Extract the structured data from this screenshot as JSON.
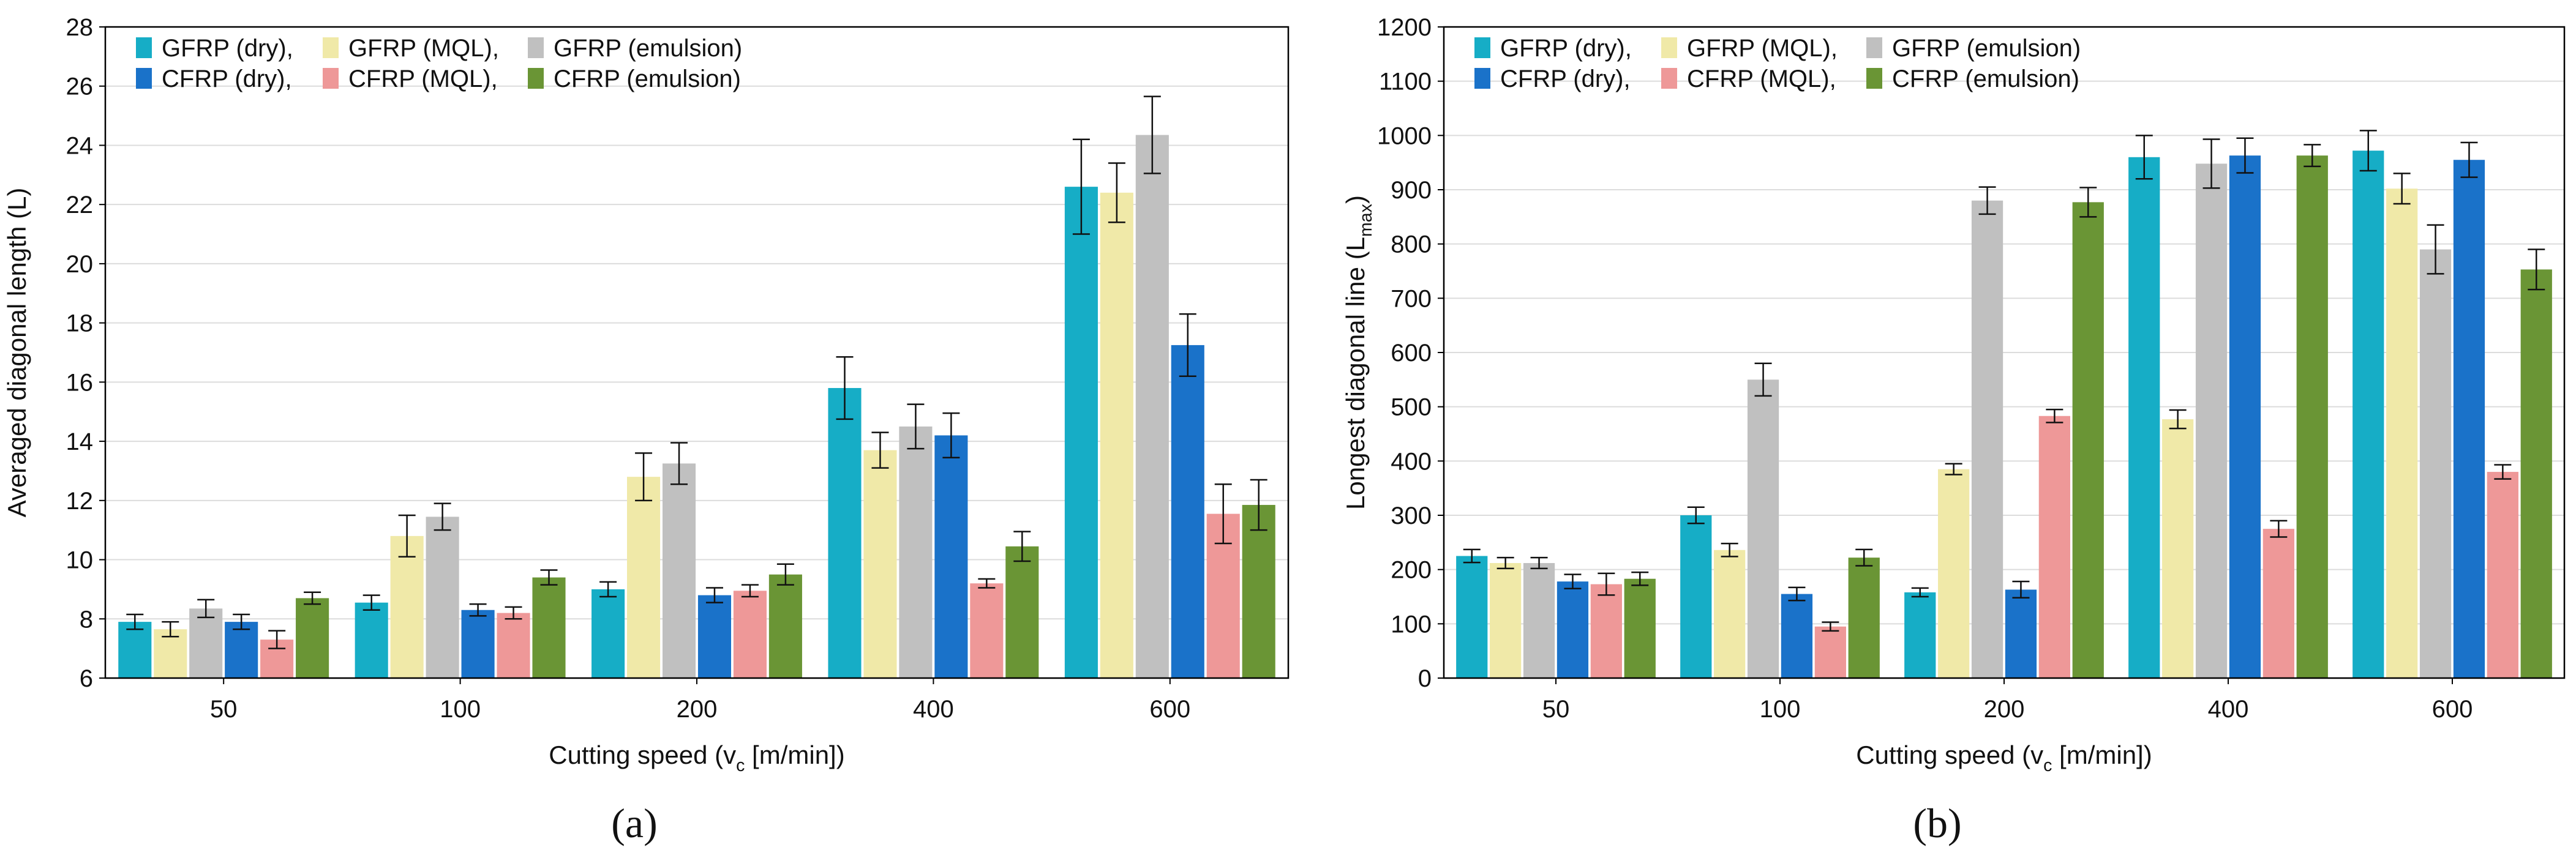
{
  "panel_labels": [
    "(a)",
    "(b)"
  ],
  "legend": {
    "entries": [
      {
        "name": "GFRP (dry),",
        "color": "#16adc6"
      },
      {
        "name": "GFRP (MQL),",
        "color": "#f0e9a8"
      },
      {
        "name": "GFRP (emulsion)",
        "color": "#c0c0c0"
      },
      {
        "name": "CFRP (dry),",
        "color": "#1a72c9"
      },
      {
        "name": "CFRP (MQL),",
        "color": "#ee9898"
      },
      {
        "name": "CFRP (emulsion)",
        "color": "#6a9535"
      }
    ]
  },
  "chart_data": [
    {
      "type": "bar",
      "categories": [
        "50",
        "100",
        "200",
        "400",
        "600"
      ],
      "xlabel_parts": [
        "Cutting speed (v",
        "c",
        " [m/min])"
      ],
      "ylabel_parts": [
        "Averaged diagonal length (L)"
      ],
      "ylim": [
        6,
        28
      ],
      "yticks": [
        6,
        8,
        10,
        12,
        14,
        16,
        18,
        20,
        22,
        24,
        26,
        28
      ],
      "grid": true,
      "legend_position": "top-left",
      "series": [
        {
          "name": "GFRP (dry)",
          "values": [
            7.9,
            8.55,
            9.0,
            15.8,
            22.6
          ],
          "errors": [
            0.25,
            0.25,
            0.25,
            1.05,
            1.6
          ]
        },
        {
          "name": "GFRP (MQL)",
          "values": [
            7.65,
            10.8,
            12.8,
            13.7,
            22.4
          ],
          "errors": [
            0.25,
            0.7,
            0.8,
            0.6,
            1.0
          ]
        },
        {
          "name": "GFRP (emulsion)",
          "values": [
            8.35,
            11.45,
            13.25,
            14.5,
            24.35
          ],
          "errors": [
            0.3,
            0.45,
            0.7,
            0.75,
            1.3
          ]
        },
        {
          "name": "CFRP (dry)",
          "values": [
            7.9,
            8.3,
            8.8,
            14.2,
            17.25
          ],
          "errors": [
            0.25,
            0.2,
            0.25,
            0.75,
            1.05
          ]
        },
        {
          "name": "CFRP (MQL)",
          "values": [
            7.3,
            8.2,
            8.95,
            9.2,
            11.55
          ],
          "errors": [
            0.3,
            0.2,
            0.2,
            0.15,
            1.0
          ]
        },
        {
          "name": "CFRP (emulsion)",
          "values": [
            8.7,
            9.4,
            9.5,
            10.45,
            11.85
          ],
          "errors": [
            0.2,
            0.25,
            0.35,
            0.5,
            0.85
          ]
        }
      ]
    },
    {
      "type": "bar",
      "categories": [
        "50",
        "100",
        "200",
        "400",
        "600"
      ],
      "xlabel_parts": [
        "Cutting speed (v",
        "c",
        " [m/min])"
      ],
      "ylabel_parts": [
        "Longest diagonal line (L",
        "max",
        ")"
      ],
      "ylim": [
        0,
        1200
      ],
      "yticks": [
        0,
        100,
        200,
        300,
        400,
        500,
        600,
        700,
        800,
        900,
        1000,
        1100,
        1200
      ],
      "grid": true,
      "legend_position": "top-left",
      "series": [
        {
          "name": "GFRP (dry)",
          "values": [
            225,
            300,
            158,
            960,
            972
          ],
          "errors": [
            12,
            15,
            8,
            40,
            37
          ]
        },
        {
          "name": "GFRP (MQL)",
          "values": [
            212,
            236,
            385,
            477,
            902
          ],
          "errors": [
            10,
            12,
            10,
            17,
            28
          ]
        },
        {
          "name": "GFRP (emulsion)",
          "values": [
            212,
            550,
            880,
            948,
            790
          ],
          "errors": [
            10,
            30,
            25,
            45,
            45
          ]
        },
        {
          "name": "CFRP (dry)",
          "values": [
            178,
            155,
            163,
            963,
            955
          ],
          "errors": [
            13,
            12,
            15,
            32,
            32
          ]
        },
        {
          "name": "CFRP (MQL)",
          "values": [
            173,
            95,
            483,
            275,
            380
          ],
          "errors": [
            20,
            8,
            12,
            15,
            13
          ]
        },
        {
          "name": "CFRP (emulsion)",
          "values": [
            183,
            222,
            877,
            963,
            753
          ],
          "errors": [
            12,
            15,
            27,
            20,
            37
          ]
        }
      ]
    }
  ]
}
